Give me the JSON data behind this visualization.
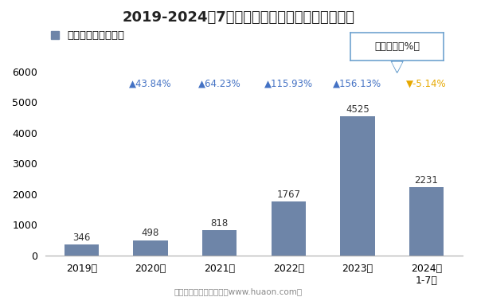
{
  "title": "2019-2024年7月郑州商品交易所棉花期权成交量",
  "categories": [
    "2019年",
    "2020年",
    "2021年",
    "2022年",
    "2023年",
    "2024年\n1-7月"
  ],
  "values": [
    346,
    498,
    818,
    1767,
    4525,
    2231
  ],
  "bar_color": "#6e85a8",
  "yoy_labels": [
    "▲43.84%",
    "▲64.23%",
    "▲115.93%",
    "▲156.13%",
    "▼-5.14%"
  ],
  "yoy_colors": [
    "#4472c4",
    "#4472c4",
    "#4472c4",
    "#4472c4",
    "#e6a800"
  ],
  "ylim": [
    0,
    6000
  ],
  "yticks": [
    0,
    1000,
    2000,
    3000,
    4000,
    5000,
    6000
  ],
  "legend_label": "期权成交量（万手）",
  "legend_box_label": "同比增速（%）",
  "footer": "制图：华经产业研究院（www.huaon.com）",
  "title_fontsize": 13,
  "tick_fontsize": 9,
  "bar_value_fontsize": 8.5,
  "yoy_fontsize": 8.5,
  "background_color": "#ffffff",
  "box_border_color": "#6fa3d0"
}
